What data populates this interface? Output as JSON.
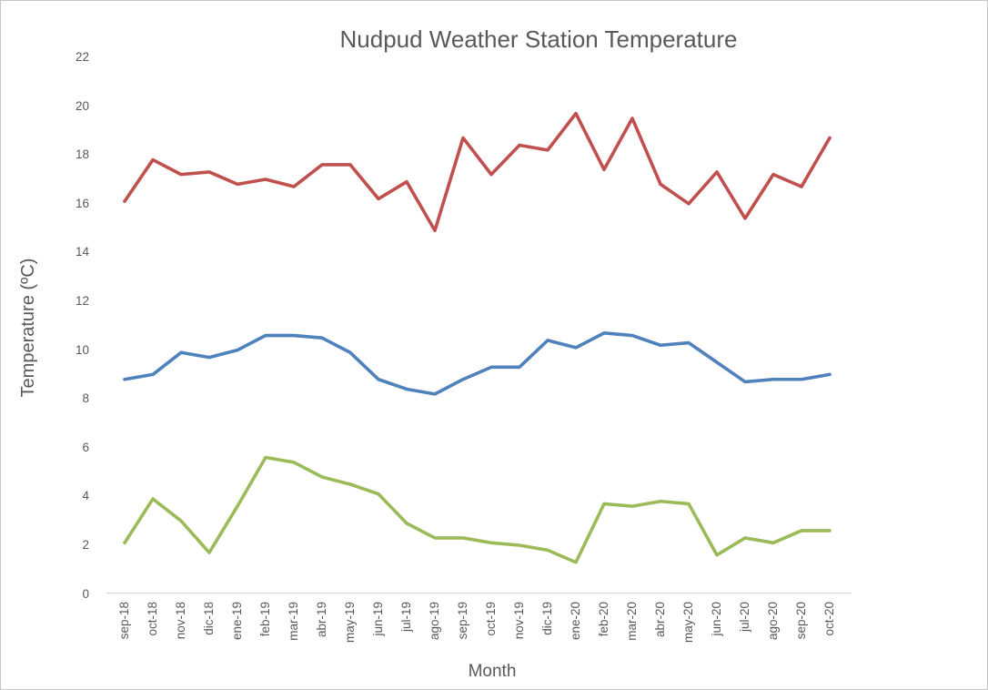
{
  "chart_data": {
    "type": "line",
    "title": "Nudpud Weather Station Temperature",
    "xlabel": "Month",
    "ylabel": "Temperature (ºC)",
    "ylim": [
      0,
      22
    ],
    "y_tick_step": 2,
    "grid": false,
    "legend": "none",
    "axis_line_color": "#d6d6d6",
    "text_color": "#595959",
    "categories": [
      "sep-18",
      "oct-18",
      "nov-18",
      "dic-18",
      "ene-19",
      "feb-19",
      "mar-19",
      "abr-19",
      "may-19",
      "jun-19",
      "jul-19",
      "ago-19",
      "sep-19",
      "oct-19",
      "nov-19",
      "dic-19",
      "ene-20",
      "feb-20",
      "mar-20",
      "abr-20",
      "may-20",
      "jun-20",
      "jul-20",
      "ago-20",
      "sep-20",
      "oct-20"
    ],
    "series": [
      {
        "name": "red",
        "color": "#C0504D",
        "values": [
          16.1,
          17.8,
          17.2,
          17.3,
          16.8,
          17.0,
          16.7,
          17.6,
          17.6,
          16.2,
          16.9,
          14.9,
          18.7,
          17.2,
          18.4,
          18.2,
          19.7,
          17.4,
          19.5,
          16.8,
          16.0,
          17.3,
          15.4,
          17.2,
          16.7,
          18.7
        ]
      },
      {
        "name": "blue",
        "color": "#4F81BD",
        "values": [
          8.8,
          9.0,
          9.9,
          9.7,
          10.0,
          10.6,
          10.6,
          10.5,
          9.9,
          8.8,
          8.4,
          8.2,
          8.8,
          9.3,
          9.3,
          10.4,
          10.1,
          10.7,
          10.6,
          10.2,
          10.3,
          9.5,
          8.7,
          8.8,
          8.8,
          9.0
        ]
      },
      {
        "name": "green",
        "color": "#9BBB59",
        "values": [
          2.1,
          3.9,
          3.0,
          1.7,
          3.6,
          5.6,
          5.4,
          4.8,
          4.5,
          4.1,
          2.9,
          2.3,
          2.3,
          2.1,
          2.0,
          1.8,
          1.3,
          3.7,
          3.6,
          3.8,
          3.7,
          1.6,
          2.3,
          2.1,
          2.6,
          2.6
        ]
      }
    ]
  }
}
